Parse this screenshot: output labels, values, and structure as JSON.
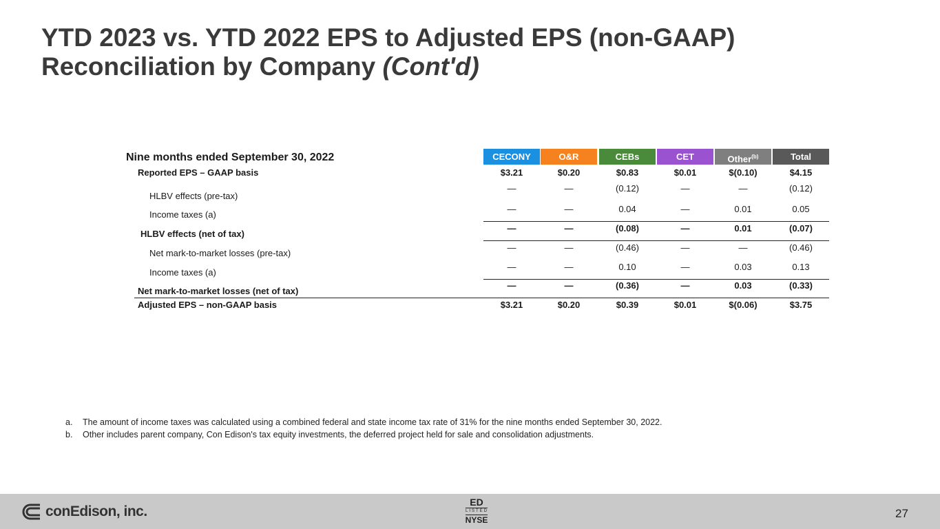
{
  "header": {
    "title_line1": "YTD 2023 vs. YTD 2022 EPS to Adjusted EPS (non-GAAP)",
    "title_line2": "Reconciliation by Company",
    "title_emphasis": "(Cont'd)"
  },
  "table": {
    "caption": "Nine months ended September 30, 2022",
    "columns": [
      {
        "label": "CECONY",
        "color": "#1b8fe0"
      },
      {
        "label": "O&R",
        "color": "#f5821f"
      },
      {
        "label": "CEBs",
        "color": "#4a8b3b"
      },
      {
        "label": "CET",
        "color": "#9b52d1"
      },
      {
        "label": "Other",
        "sup": "(b)",
        "color": "#7f7f7f"
      },
      {
        "label": "Total",
        "color": "#595959"
      }
    ],
    "rows": [
      {
        "label": "Reported EPS – GAAP basis",
        "values": [
          "$3.21",
          "$0.20",
          "$0.83",
          "$0.01",
          "$(0.10)",
          "$4.15"
        ]
      },
      {
        "label": "HLBV effects (pre-tax)",
        "values": [
          "—",
          "—",
          "(0.12)",
          "—",
          "—",
          "(0.12)"
        ]
      },
      {
        "label": "Income taxes (a)",
        "values": [
          "—",
          "—",
          "0.04",
          "—",
          "0.01",
          "0.05"
        ]
      },
      {
        "label": "HLBV effects (net of tax)",
        "values": [
          "—",
          "—",
          "(0.08)",
          "—",
          "0.01",
          "(0.07)"
        ]
      },
      {
        "label": "Net mark-to-market losses (pre-tax)",
        "values": [
          "—",
          "—",
          "(0.46)",
          "—",
          "—",
          "(0.46)"
        ]
      },
      {
        "label": "Income taxes (a)",
        "values": [
          "—",
          "—",
          "0.10",
          "—",
          "0.03",
          "0.13"
        ]
      },
      {
        "label": "Net mark-to-market losses (net of tax)",
        "values": [
          "—",
          "—",
          "(0.36)",
          "—",
          "0.03",
          "(0.33)"
        ]
      },
      {
        "label": "Adjusted EPS – non-GAAP basis",
        "values": [
          "$3.21",
          "$0.20",
          "$0.39",
          "$0.01",
          "$(0.06)",
          "$3.75"
        ]
      }
    ]
  },
  "footnotes": [
    {
      "marker": "a.",
      "text": "The amount of income taxes was calculated using a combined federal and state income tax rate of 31% for the nine months ended September 30, 2022."
    },
    {
      "marker": "b.",
      "text": "Other includes parent company, Con Edison's tax equity investments, the deferred project held for sale and consolidation adjustments."
    }
  ],
  "footer": {
    "logo": "conEdison, inc.",
    "ticker": "ED",
    "listed": "LISTED",
    "exchange": "NYSE",
    "page_number": "27"
  }
}
